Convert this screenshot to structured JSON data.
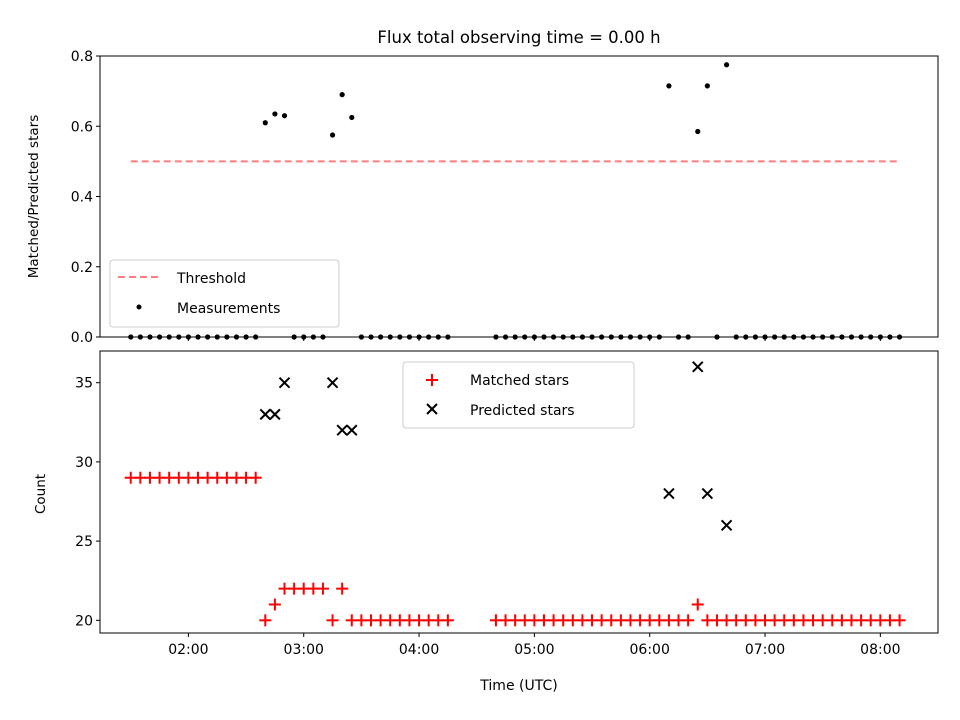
{
  "title": "Flux total observing time = 0.00 h",
  "colors": {
    "threshold": "#ff7f7f",
    "measurement": "#000000",
    "matched": "#ff0000",
    "predicted": "#000000"
  },
  "chart_data": [
    {
      "type": "scatter",
      "ylabel": "Matched/Predicted stars",
      "xlim": [
        "01:14",
        "08:30"
      ],
      "ylim": [
        0,
        0.8
      ],
      "yticks": [
        0.0,
        0.2,
        0.4,
        0.6,
        0.8
      ],
      "ytick_labels": [
        "0.0",
        "0.2",
        "0.4",
        "0.6",
        "0.8"
      ],
      "legend": {
        "placement": "lower-left",
        "entries": [
          "Threshold",
          "Measurements"
        ]
      },
      "threshold": {
        "name": "Threshold",
        "value": 0.5,
        "x": [
          "01:30",
          "08:10"
        ],
        "style": "dashed"
      },
      "series": [
        {
          "name": "Measurements",
          "marker": "dot",
          "points": [
            [
              "01:30",
              0
            ],
            [
              "01:35",
              0
            ],
            [
              "01:40",
              0
            ],
            [
              "01:45",
              0
            ],
            [
              "01:50",
              0
            ],
            [
              "01:55",
              0
            ],
            [
              "02:00",
              0
            ],
            [
              "02:05",
              0
            ],
            [
              "02:10",
              0
            ],
            [
              "02:15",
              0
            ],
            [
              "02:20",
              0
            ],
            [
              "02:25",
              0
            ],
            [
              "02:30",
              0
            ],
            [
              "02:35",
              0
            ],
            [
              "02:40",
              0.61
            ],
            [
              "02:45",
              0.635
            ],
            [
              "02:50",
              0.63
            ],
            [
              "02:55",
              0
            ],
            [
              "03:00",
              0
            ],
            [
              "03:05",
              0
            ],
            [
              "03:10",
              0
            ],
            [
              "03:15",
              0.575
            ],
            [
              "03:20",
              0.69
            ],
            [
              "03:25",
              0.625
            ],
            [
              "03:30",
              0
            ],
            [
              "03:35",
              0
            ],
            [
              "03:40",
              0
            ],
            [
              "03:45",
              0
            ],
            [
              "03:50",
              0
            ],
            [
              "03:55",
              0
            ],
            [
              "04:00",
              0
            ],
            [
              "04:05",
              0
            ],
            [
              "04:10",
              0
            ],
            [
              "04:15",
              0
            ],
            [
              "04:40",
              0
            ],
            [
              "04:45",
              0
            ],
            [
              "04:50",
              0
            ],
            [
              "04:55",
              0
            ],
            [
              "05:00",
              0
            ],
            [
              "05:05",
              0
            ],
            [
              "05:10",
              0
            ],
            [
              "05:15",
              0
            ],
            [
              "05:20",
              0
            ],
            [
              "05:25",
              0
            ],
            [
              "05:30",
              0
            ],
            [
              "05:35",
              0
            ],
            [
              "05:40",
              0
            ],
            [
              "05:45",
              0
            ],
            [
              "05:50",
              0
            ],
            [
              "05:55",
              0
            ],
            [
              "06:00",
              0
            ],
            [
              "06:05",
              0
            ],
            [
              "06:10",
              0.715
            ],
            [
              "06:15",
              0
            ],
            [
              "06:20",
              0
            ],
            [
              "06:25",
              0.585
            ],
            [
              "06:30",
              0.715
            ],
            [
              "06:35",
              0
            ],
            [
              "06:40",
              0.775
            ],
            [
              "06:45",
              0
            ],
            [
              "06:50",
              0
            ],
            [
              "06:55",
              0
            ],
            [
              "07:00",
              0
            ],
            [
              "07:05",
              0
            ],
            [
              "07:10",
              0
            ],
            [
              "07:15",
              0
            ],
            [
              "07:20",
              0
            ],
            [
              "07:25",
              0
            ],
            [
              "07:30",
              0
            ],
            [
              "07:35",
              0
            ],
            [
              "07:40",
              0
            ],
            [
              "07:45",
              0
            ],
            [
              "07:50",
              0
            ],
            [
              "07:55",
              0
            ],
            [
              "08:00",
              0
            ],
            [
              "08:05",
              0
            ],
            [
              "08:10",
              0
            ]
          ]
        }
      ]
    },
    {
      "type": "scatter",
      "xlabel": "Time (UTC)",
      "ylabel": "Count",
      "xlim": [
        "01:14",
        "08:30"
      ],
      "ylim": [
        19.2,
        37
      ],
      "yticks": [
        20,
        25,
        30,
        35
      ],
      "ytick_labels": [
        "20",
        "25",
        "30",
        "35"
      ],
      "xticks": [
        "02:00",
        "03:00",
        "04:00",
        "05:00",
        "06:00",
        "07:00",
        "08:00"
      ],
      "xtick_labels": [
        "02:00",
        "03:00",
        "04:00",
        "05:00",
        "06:00",
        "07:00",
        "08:00"
      ],
      "legend": {
        "placement": "upper-center",
        "entries": [
          "Matched stars",
          "Predicted stars"
        ]
      },
      "series": [
        {
          "name": "Matched stars",
          "marker": "plus",
          "points": [
            [
              "01:30",
              29
            ],
            [
              "01:35",
              29
            ],
            [
              "01:40",
              29
            ],
            [
              "01:45",
              29
            ],
            [
              "01:50",
              29
            ],
            [
              "01:55",
              29
            ],
            [
              "02:00",
              29
            ],
            [
              "02:05",
              29
            ],
            [
              "02:10",
              29
            ],
            [
              "02:15",
              29
            ],
            [
              "02:20",
              29
            ],
            [
              "02:25",
              29
            ],
            [
              "02:30",
              29
            ],
            [
              "02:35",
              29
            ],
            [
              "02:40",
              20
            ],
            [
              "02:45",
              21
            ],
            [
              "02:50",
              22
            ],
            [
              "02:55",
              22
            ],
            [
              "03:00",
              22
            ],
            [
              "03:05",
              22
            ],
            [
              "03:10",
              22
            ],
            [
              "03:15",
              20
            ],
            [
              "03:20",
              22
            ],
            [
              "03:25",
              20
            ],
            [
              "03:30",
              20
            ],
            [
              "03:35",
              20
            ],
            [
              "03:40",
              20
            ],
            [
              "03:45",
              20
            ],
            [
              "03:50",
              20
            ],
            [
              "03:55",
              20
            ],
            [
              "04:00",
              20
            ],
            [
              "04:05",
              20
            ],
            [
              "04:10",
              20
            ],
            [
              "04:15",
              20
            ],
            [
              "04:40",
              20
            ],
            [
              "04:45",
              20
            ],
            [
              "04:50",
              20
            ],
            [
              "04:55",
              20
            ],
            [
              "05:00",
              20
            ],
            [
              "05:05",
              20
            ],
            [
              "05:10",
              20
            ],
            [
              "05:15",
              20
            ],
            [
              "05:20",
              20
            ],
            [
              "05:25",
              20
            ],
            [
              "05:30",
              20
            ],
            [
              "05:35",
              20
            ],
            [
              "05:40",
              20
            ],
            [
              "05:45",
              20
            ],
            [
              "05:50",
              20
            ],
            [
              "05:55",
              20
            ],
            [
              "06:00",
              20
            ],
            [
              "06:05",
              20
            ],
            [
              "06:10",
              20
            ],
            [
              "06:15",
              20
            ],
            [
              "06:20",
              20
            ],
            [
              "06:25",
              21
            ],
            [
              "06:30",
              20
            ],
            [
              "06:35",
              20
            ],
            [
              "06:40",
              20
            ],
            [
              "06:45",
              20
            ],
            [
              "06:50",
              20
            ],
            [
              "06:55",
              20
            ],
            [
              "07:00",
              20
            ],
            [
              "07:05",
              20
            ],
            [
              "07:10",
              20
            ],
            [
              "07:15",
              20
            ],
            [
              "07:20",
              20
            ],
            [
              "07:25",
              20
            ],
            [
              "07:30",
              20
            ],
            [
              "07:35",
              20
            ],
            [
              "07:40",
              20
            ],
            [
              "07:45",
              20
            ],
            [
              "07:50",
              20
            ],
            [
              "07:55",
              20
            ],
            [
              "08:00",
              20
            ],
            [
              "08:05",
              20
            ],
            [
              "08:10",
              20
            ]
          ]
        },
        {
          "name": "Predicted stars",
          "marker": "x",
          "points": [
            [
              "02:40",
              33
            ],
            [
              "02:45",
              33
            ],
            [
              "02:50",
              35
            ],
            [
              "03:15",
              35
            ],
            [
              "03:20",
              32
            ],
            [
              "03:25",
              32
            ],
            [
              "06:10",
              28
            ],
            [
              "06:25",
              36
            ],
            [
              "06:30",
              28
            ],
            [
              "06:40",
              26
            ]
          ]
        }
      ]
    }
  ]
}
